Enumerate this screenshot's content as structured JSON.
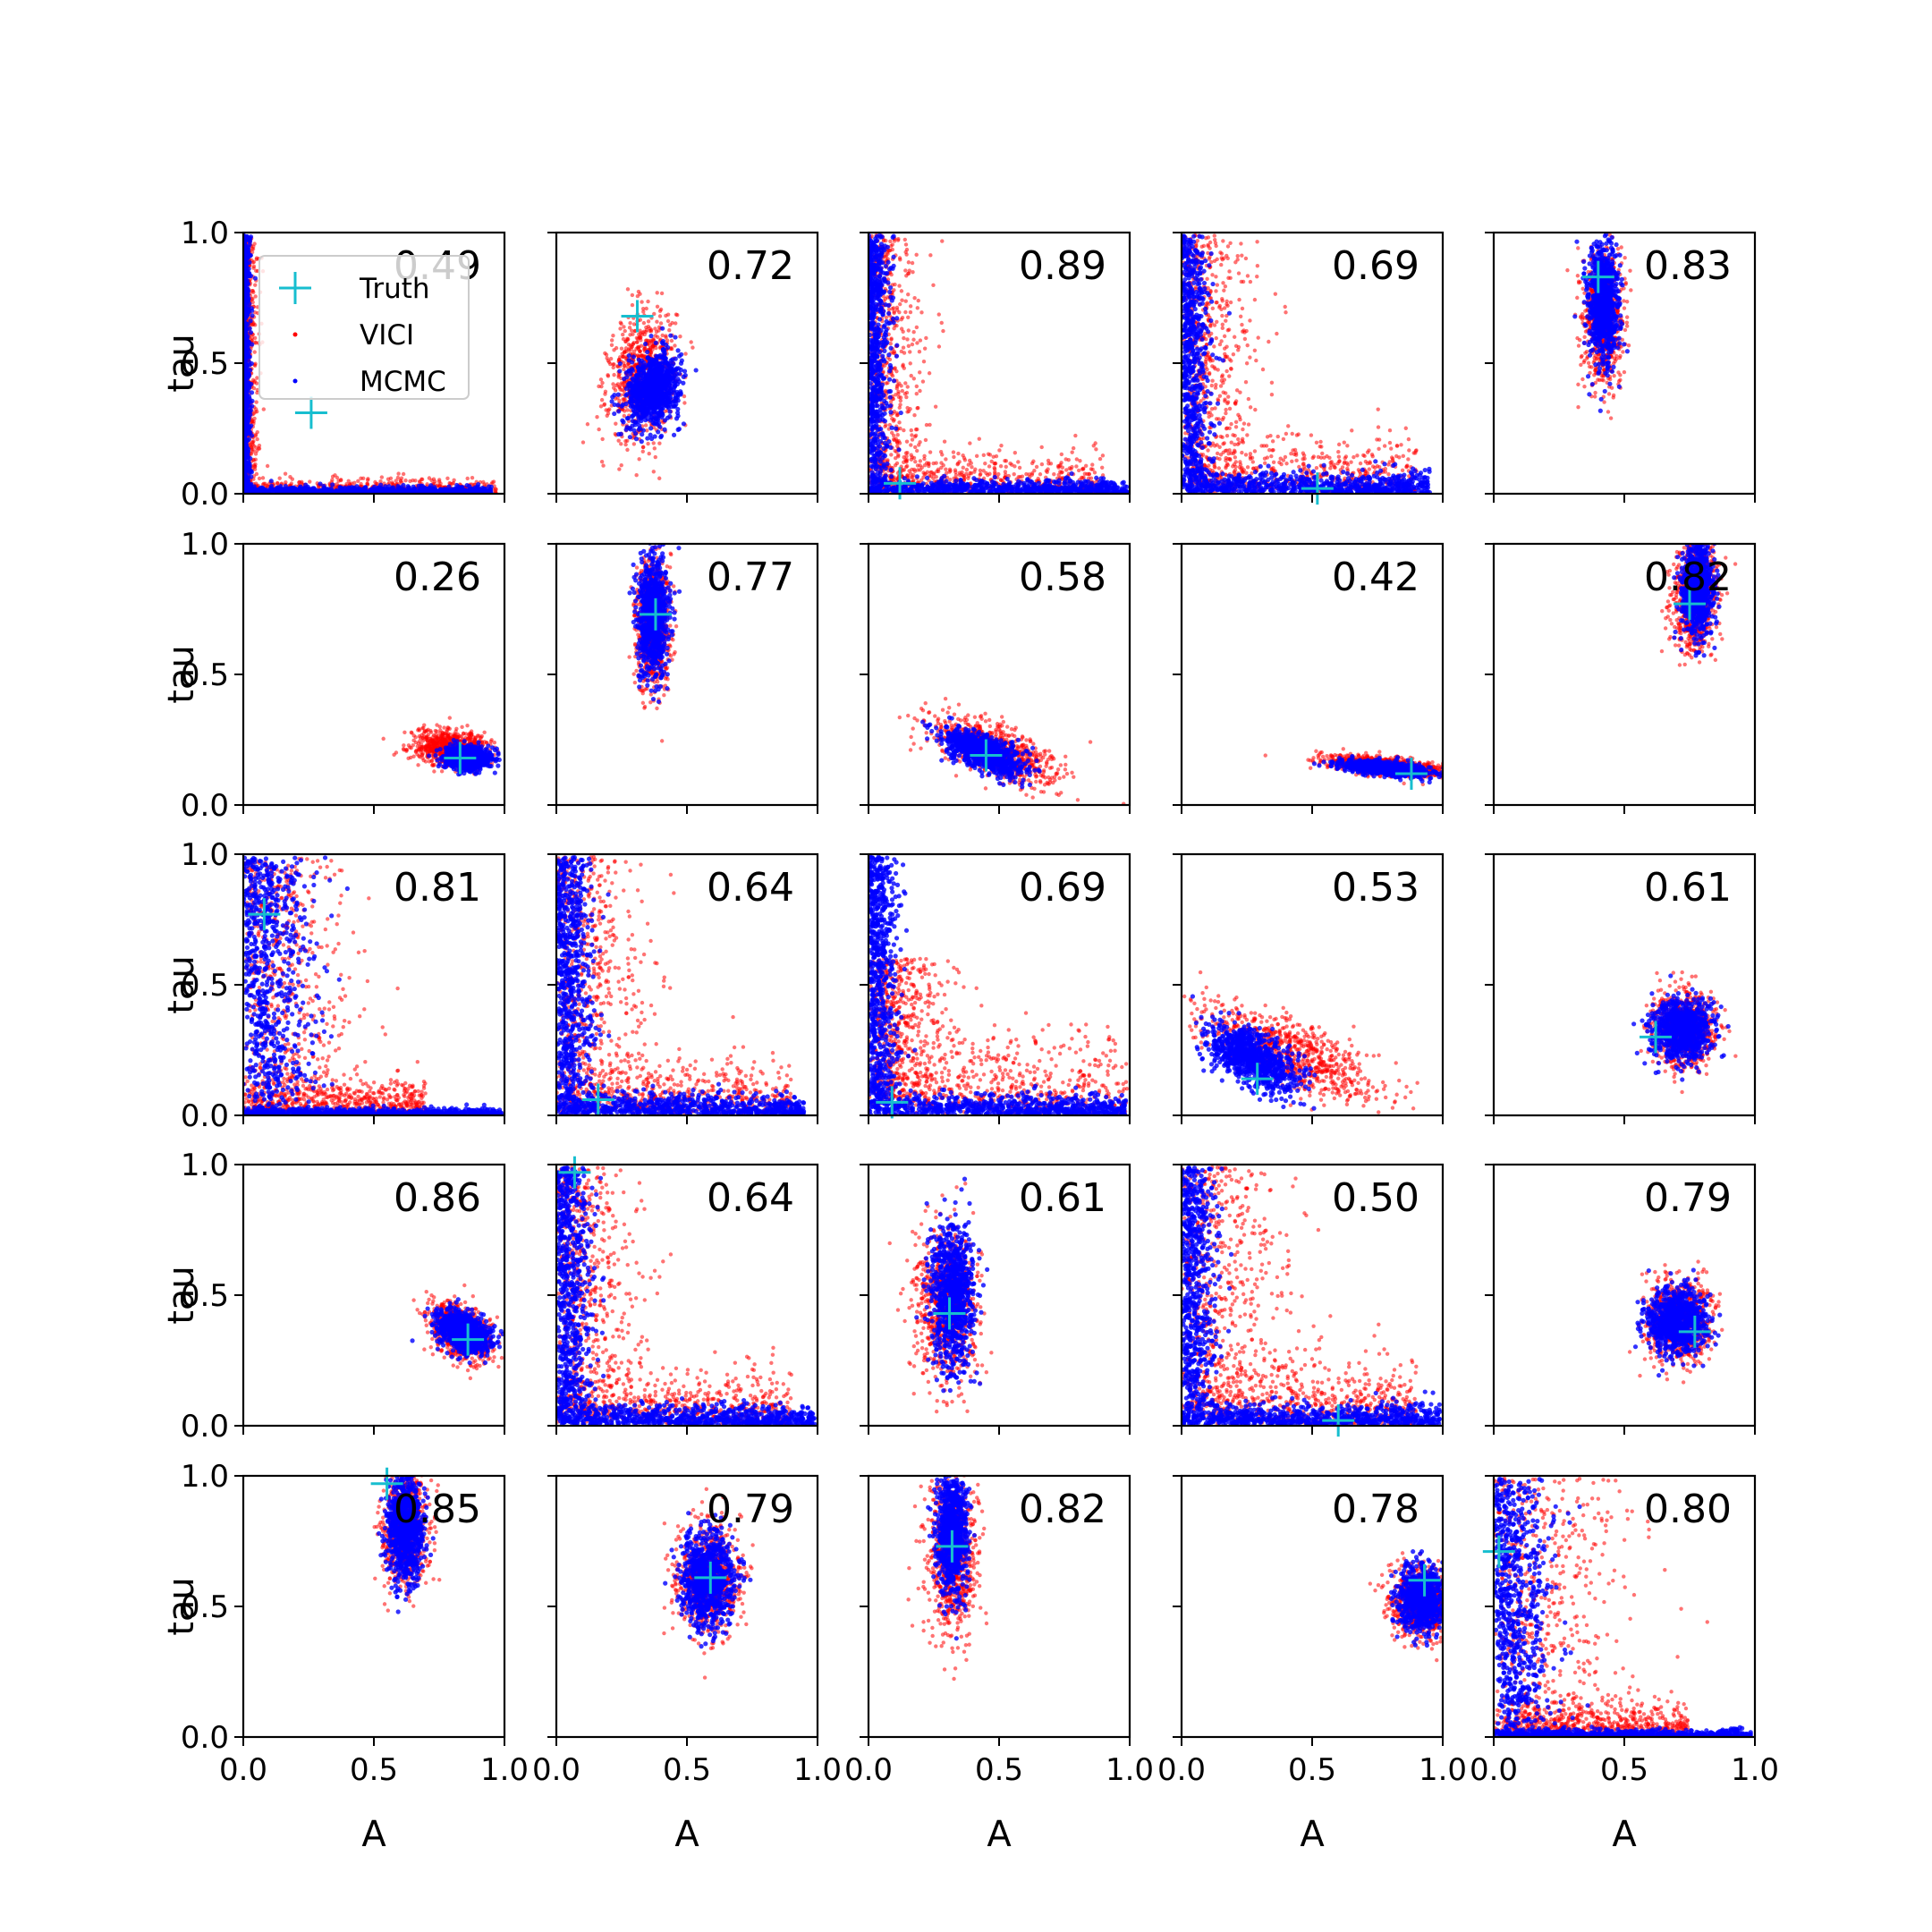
{
  "chart_data": {
    "type": "scatter",
    "layout": "5x5 grid of scatter panels",
    "xlabel": "A",
    "ylabel": "tau",
    "xlim": [
      0,
      1
    ],
    "ylim": [
      0,
      1
    ],
    "xticks": [
      "0.0",
      "0.5",
      "1.0"
    ],
    "yticks": [
      "0.0",
      "0.5",
      "1.0"
    ],
    "grid": false,
    "legend": {
      "placement": "top-left of first panel",
      "entries": [
        {
          "name": "Truth",
          "marker": "plus",
          "color": "#17becf"
        },
        {
          "name": "VICI",
          "marker": "dot",
          "color": "#ff0000"
        },
        {
          "name": "MCMC",
          "marker": "dot",
          "color": "#0000ff"
        }
      ]
    },
    "series_colors": {
      "VICI": "#ff0000",
      "MCMC": "#0000ff",
      "Truth": "#17becf"
    },
    "panels": [
      {
        "label": "0.49",
        "truth": [
          0.26,
          0.31
        ],
        "vici": {
          "shape": "lshape",
          "min": [
            0.0,
            0.0
          ],
          "max": [
            0.97,
            0.98
          ],
          "corner": [
            0.02,
            0.02
          ],
          "density": 900
        },
        "mcmc": {
          "shape": "lshape",
          "min": [
            0.0,
            0.0
          ],
          "max": [
            0.95,
            0.99
          ],
          "corner": [
            0.01,
            0.01
          ],
          "density": 900
        }
      },
      {
        "label": "0.72",
        "truth": [
          0.31,
          0.68
        ],
        "vici": {
          "shape": "ellipse",
          "center": [
            0.33,
            0.45
          ],
          "radius": [
            0.15,
            0.28
          ],
          "tilt": 0.35
        },
        "mcmc": {
          "shape": "ellipse",
          "center": [
            0.37,
            0.4
          ],
          "radius": [
            0.12,
            0.16
          ],
          "tilt": 0.3
        }
      },
      {
        "label": "0.89",
        "truth": [
          0.12,
          0.04
        ],
        "vici": {
          "shape": "lshape",
          "min": [
            0.0,
            0.0
          ],
          "max": [
            0.9,
            0.99
          ],
          "corner": [
            0.08,
            0.06
          ],
          "density": 1400
        },
        "mcmc": {
          "shape": "lshape",
          "min": [
            0.0,
            0.0
          ],
          "max": [
            0.99,
            0.99
          ],
          "corner": [
            0.03,
            0.02
          ],
          "density": 1400
        }
      },
      {
        "label": "0.69",
        "truth": [
          0.52,
          0.02
        ],
        "vici": {
          "shape": "lshape",
          "min": [
            0.0,
            0.0
          ],
          "max": [
            0.9,
            0.99
          ],
          "corner": [
            0.1,
            0.08
          ],
          "density": 1400
        },
        "mcmc": {
          "shape": "lshape",
          "min": [
            0.0,
            0.0
          ],
          "max": [
            0.95,
            0.99
          ],
          "corner": [
            0.04,
            0.03
          ],
          "density": 1400
        }
      },
      {
        "label": "0.83",
        "truth": [
          0.4,
          0.83
        ],
        "vici": {
          "shape": "ellipse",
          "center": [
            0.42,
            0.68
          ],
          "radius": [
            0.09,
            0.3
          ],
          "tilt": 0.0
        },
        "mcmc": {
          "shape": "ellipse",
          "center": [
            0.42,
            0.72
          ],
          "radius": [
            0.07,
            0.28
          ],
          "tilt": 0.0
        }
      },
      {
        "label": "0.26",
        "truth": [
          0.83,
          0.18
        ],
        "vici": {
          "shape": "ellipse",
          "center": [
            0.79,
            0.22
          ],
          "radius": [
            0.17,
            0.08
          ],
          "tilt": 0.0
        },
        "mcmc": {
          "shape": "ellipse",
          "center": [
            0.86,
            0.18
          ],
          "radius": [
            0.1,
            0.05
          ],
          "tilt": 0.0
        }
      },
      {
        "label": "0.77",
        "truth": [
          0.38,
          0.73
        ],
        "vici": {
          "shape": "ellipse",
          "center": [
            0.37,
            0.7
          ],
          "radius": [
            0.08,
            0.3
          ],
          "tilt": 0.05
        },
        "mcmc": {
          "shape": "ellipse",
          "center": [
            0.37,
            0.72
          ],
          "radius": [
            0.07,
            0.26
          ],
          "tilt": 0.05
        }
      },
      {
        "label": "0.58",
        "truth": [
          0.45,
          0.19
        ],
        "vici": {
          "shape": "ellipse",
          "center": [
            0.48,
            0.21
          ],
          "radius": [
            0.28,
            0.12
          ],
          "tilt": -0.35
        },
        "mcmc": {
          "shape": "ellipse",
          "center": [
            0.44,
            0.2
          ],
          "radius": [
            0.18,
            0.08
          ],
          "tilt": -0.35
        }
      },
      {
        "label": "0.42",
        "truth": [
          0.88,
          0.12
        ],
        "vici": {
          "shape": "ellipse",
          "center": [
            0.77,
            0.15
          ],
          "radius": [
            0.26,
            0.04
          ],
          "tilt": -0.1
        },
        "mcmc": {
          "shape": "ellipse",
          "center": [
            0.78,
            0.14
          ],
          "radius": [
            0.2,
            0.03
          ],
          "tilt": -0.1
        }
      },
      {
        "label": "0.82",
        "truth": [
          0.75,
          0.77
        ],
        "vici": {
          "shape": "ellipse",
          "center": [
            0.77,
            0.8
          ],
          "radius": [
            0.1,
            0.25
          ],
          "tilt": 0.2
        },
        "mcmc": {
          "shape": "ellipse",
          "center": [
            0.78,
            0.83
          ],
          "radius": [
            0.07,
            0.2
          ],
          "tilt": 0.2
        }
      },
      {
        "label": "0.81",
        "truth": [
          0.08,
          0.77
        ],
        "vici": {
          "shape": "lshape",
          "min": [
            0.0,
            0.0
          ],
          "max": [
            0.7,
            0.99
          ],
          "corner": [
            0.15,
            0.05
          ],
          "density": 1400
        },
        "mcmc": {
          "shape": "lshape",
          "min": [
            0.0,
            0.0
          ],
          "max": [
            0.99,
            0.99
          ],
          "corner": [
            0.1,
            0.01
          ],
          "density": 1400
        }
      },
      {
        "label": "0.64",
        "truth": [
          0.16,
          0.06
        ],
        "vici": {
          "shape": "lshape",
          "min": [
            0.0,
            0.0
          ],
          "max": [
            0.9,
            0.99
          ],
          "corner": [
            0.12,
            0.08
          ],
          "density": 1400
        },
        "mcmc": {
          "shape": "lshape",
          "min": [
            0.0,
            0.0
          ],
          "max": [
            0.95,
            0.99
          ],
          "corner": [
            0.05,
            0.03
          ],
          "density": 1400
        }
      },
      {
        "label": "0.69",
        "truth": [
          0.09,
          0.05
        ],
        "vici": {
          "shape": "lshape",
          "min": [
            0.0,
            0.0
          ],
          "max": [
            0.99,
            0.6
          ],
          "corner": [
            0.12,
            0.12
          ],
          "density": 1400
        },
        "mcmc": {
          "shape": "lshape",
          "min": [
            0.0,
            0.0
          ],
          "max": [
            0.99,
            0.99
          ],
          "corner": [
            0.04,
            0.03
          ],
          "density": 1400
        }
      },
      {
        "label": "0.53",
        "truth": [
          0.29,
          0.14
        ],
        "vici": {
          "shape": "ellipse",
          "center": [
            0.42,
            0.24
          ],
          "radius": [
            0.4,
            0.15
          ],
          "tilt": -0.4
        },
        "mcmc": {
          "shape": "ellipse",
          "center": [
            0.27,
            0.22
          ],
          "radius": [
            0.2,
            0.12
          ],
          "tilt": -0.4
        }
      },
      {
        "label": "0.61",
        "truth": [
          0.62,
          0.3
        ],
        "vici": {
          "shape": "ellipse",
          "center": [
            0.73,
            0.33
          ],
          "radius": [
            0.15,
            0.17
          ],
          "tilt": 0.0
        },
        "mcmc": {
          "shape": "ellipse",
          "center": [
            0.72,
            0.32
          ],
          "radius": [
            0.13,
            0.13
          ],
          "tilt": 0.0
        }
      },
      {
        "label": "0.86",
        "truth": [
          0.86,
          0.33
        ],
        "vici": {
          "shape": "ellipse",
          "center": [
            0.83,
            0.36
          ],
          "radius": [
            0.14,
            0.12
          ],
          "tilt": -0.3
        },
        "mcmc": {
          "shape": "ellipse",
          "center": [
            0.84,
            0.36
          ],
          "radius": [
            0.12,
            0.09
          ],
          "tilt": -0.3
        }
      },
      {
        "label": "0.64",
        "truth": [
          0.07,
          0.97
        ],
        "vici": {
          "shape": "lshape",
          "min": [
            0.0,
            0.0
          ],
          "max": [
            0.9,
            0.99
          ],
          "corner": [
            0.12,
            0.08
          ],
          "density": 1400
        },
        "mcmc": {
          "shape": "lshape",
          "min": [
            0.0,
            0.0
          ],
          "max": [
            0.99,
            0.99
          ],
          "corner": [
            0.05,
            0.03
          ],
          "density": 1400
        }
      },
      {
        "label": "0.61",
        "truth": [
          0.31,
          0.43
        ],
        "vici": {
          "shape": "ellipse",
          "center": [
            0.3,
            0.45
          ],
          "radius": [
            0.14,
            0.35
          ],
          "tilt": -0.1
        },
        "mcmc": {
          "shape": "ellipse",
          "center": [
            0.32,
            0.5
          ],
          "radius": [
            0.1,
            0.32
          ],
          "tilt": -0.1
        }
      },
      {
        "label": "0.50",
        "truth": [
          0.6,
          0.02
        ],
        "vici": {
          "shape": "lshape",
          "min": [
            0.0,
            0.0
          ],
          "max": [
            0.9,
            0.99
          ],
          "corner": [
            0.15,
            0.1
          ],
          "density": 1400
        },
        "mcmc": {
          "shape": "lshape",
          "min": [
            0.0,
            0.0
          ],
          "max": [
            0.99,
            0.99
          ],
          "corner": [
            0.05,
            0.03
          ],
          "density": 1400
        }
      },
      {
        "label": "0.79",
        "truth": [
          0.77,
          0.36
        ],
        "vici": {
          "shape": "ellipse",
          "center": [
            0.71,
            0.4
          ],
          "radius": [
            0.15,
            0.18
          ],
          "tilt": 0.0
        },
        "mcmc": {
          "shape": "ellipse",
          "center": [
            0.7,
            0.4
          ],
          "radius": [
            0.13,
            0.14
          ],
          "tilt": 0.0
        }
      },
      {
        "label": "0.85",
        "truth": [
          0.55,
          0.97
        ],
        "vici": {
          "shape": "ellipse",
          "center": [
            0.62,
            0.8
          ],
          "radius": [
            0.1,
            0.28
          ],
          "tilt": 0.0
        },
        "mcmc": {
          "shape": "ellipse",
          "center": [
            0.62,
            0.8
          ],
          "radius": [
            0.08,
            0.24
          ],
          "tilt": 0.0
        }
      },
      {
        "label": "0.79",
        "truth": [
          0.59,
          0.61
        ],
        "vici": {
          "shape": "ellipse",
          "center": [
            0.58,
            0.6
          ],
          "radius": [
            0.14,
            0.25
          ],
          "tilt": 0.0
        },
        "mcmc": {
          "shape": "ellipse",
          "center": [
            0.58,
            0.6
          ],
          "radius": [
            0.12,
            0.21
          ],
          "tilt": 0.0
        }
      },
      {
        "label": "0.82",
        "truth": [
          0.32,
          0.73
        ],
        "vici": {
          "shape": "ellipse",
          "center": [
            0.32,
            0.7
          ],
          "radius": [
            0.11,
            0.35
          ],
          "tilt": 0.0
        },
        "mcmc": {
          "shape": "ellipse",
          "center": [
            0.32,
            0.78
          ],
          "radius": [
            0.07,
            0.28
          ],
          "tilt": 0.0
        }
      },
      {
        "label": "0.78",
        "truth": [
          0.93,
          0.6
        ],
        "vici": {
          "shape": "ellipse",
          "center": [
            0.91,
            0.52
          ],
          "radius": [
            0.13,
            0.16
          ],
          "tilt": 0.0
        },
        "mcmc": {
          "shape": "ellipse",
          "center": [
            0.92,
            0.53
          ],
          "radius": [
            0.1,
            0.15
          ],
          "tilt": 0.0
        }
      },
      {
        "label": "0.80",
        "truth": [
          0.02,
          0.71
        ],
        "vici": {
          "shape": "lshape",
          "min": [
            0.0,
            0.0
          ],
          "max": [
            0.75,
            0.99
          ],
          "corner": [
            0.18,
            0.05
          ],
          "density": 1400
        },
        "mcmc": {
          "shape": "lshape",
          "min": [
            0.0,
            0.0
          ],
          "max": [
            0.99,
            0.99
          ],
          "corner": [
            0.08,
            0.01
          ],
          "density": 1400
        }
      }
    ]
  }
}
